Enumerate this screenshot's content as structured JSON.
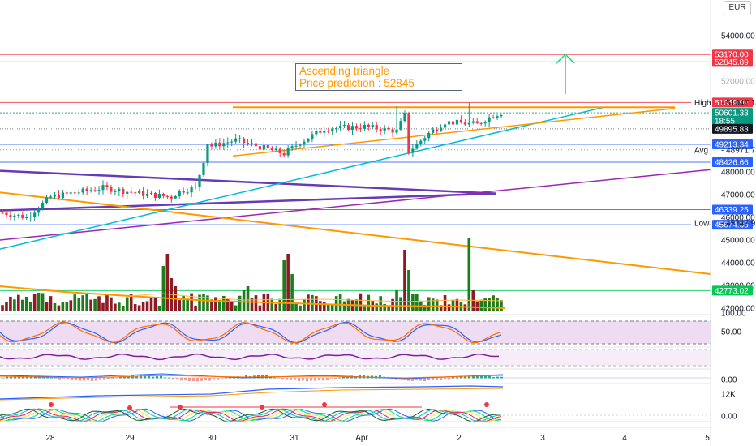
{
  "chart_data": {
    "type": "candlestick",
    "title": "",
    "currency": "EUR",
    "x_ticks": [
      "28",
      "29",
      "30",
      "31",
      "Apr",
      "2",
      "3",
      "4",
      "5"
    ],
    "price_ticks": [
      42000,
      43000,
      44000,
      45000,
      46000,
      47000,
      48000,
      54000
    ],
    "price_ticks_partial": [
      52000
    ],
    "price_tags": [
      {
        "label": "53170.00",
        "value": 53170,
        "color": "#f23645"
      },
      {
        "label": "52845.89",
        "value": 52845.89,
        "color": "#f23645"
      },
      {
        "label": "51059.02",
        "value": 51059.02,
        "color": "#f23645"
      },
      {
        "label": "50601.33",
        "sub": "18:55",
        "value": 50601.33,
        "color": "#089981"
      },
      {
        "label": "49895.83",
        "value": 49895.83,
        "color": "#131722"
      },
      {
        "label": "49213.34",
        "value": 49213.34,
        "color": "#2962ff"
      },
      {
        "label": "48426.66",
        "value": 48426.66,
        "color": "#2962ff"
      },
      {
        "label": "46339.25",
        "value": 46339.25,
        "color": "#2962ff"
      },
      {
        "label": "45674.35",
        "value": 45674.35,
        "color": "#2962ff"
      },
      {
        "label": "42773.02",
        "value": 42773.02,
        "color": "#00c853"
      }
    ],
    "markers": [
      {
        "name": "High",
        "label": "High",
        "value": 51047.18
      },
      {
        "name": "Avg",
        "label": "Avg",
        "value": 48971.73
      },
      {
        "name": "Low",
        "label": "Low",
        "value": 45747.91
      }
    ],
    "annotation": {
      "line1": "Ascending triangle",
      "line2": "Price prediction : 52845",
      "target": 52845
    },
    "indicator_ticks": [
      {
        "label": "100.00"
      },
      {
        "label": "50.00"
      },
      {
        "label": "0.00"
      },
      {
        "label": "12K"
      },
      {
        "label": "0.00"
      }
    ],
    "colors": {
      "up": "#089981",
      "down": "#f23645",
      "vol_up": "#1b7d1b",
      "vol_down": "#8e1a24",
      "triangle": "#ff9800",
      "trend_teal": "#00bcd4",
      "purple": "#7b1fa2",
      "purple_bold": "#673ab7",
      "prediction_arrow": "#00e676"
    },
    "grid": false
  }
}
